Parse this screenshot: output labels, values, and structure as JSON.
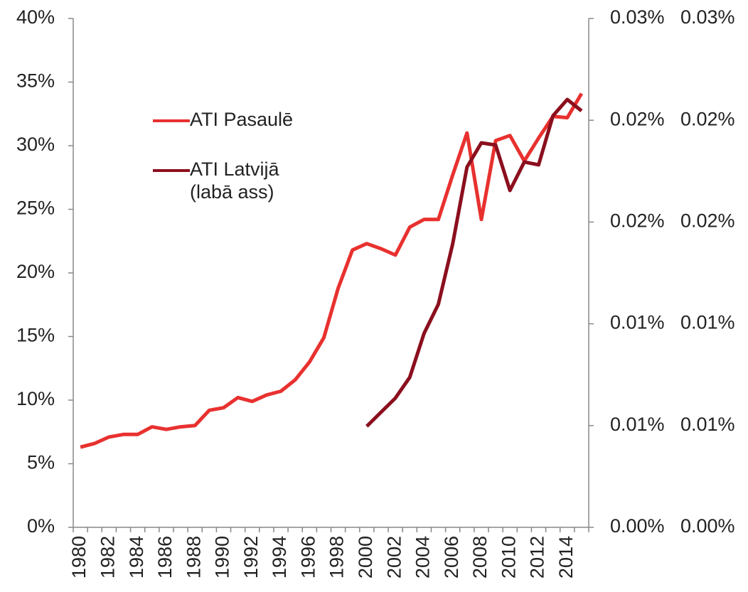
{
  "chart_data": {
    "type": "line",
    "categories": [
      "1980",
      null,
      "1982",
      null,
      "1984",
      null,
      "1986",
      null,
      "1988",
      null,
      "1990",
      null,
      "1992",
      null,
      "1994",
      null,
      "1996",
      null,
      "1998",
      null,
      "2000",
      null,
      "2002",
      null,
      "2004",
      null,
      "2006",
      null,
      "2008",
      null,
      "2010",
      null,
      "2012",
      null,
      "2014",
      null
    ],
    "series": [
      {
        "name": "ATI Pasaulē",
        "color": "#e8312f",
        "values": [
          6.3,
          6.6,
          7.1,
          7.3,
          7.3,
          7.9,
          7.7,
          7.9,
          8.0,
          9.2,
          9.4,
          10.2,
          9.9,
          10.4,
          10.7,
          11.6,
          13.0,
          14.9,
          18.8,
          21.8,
          22.3,
          21.9,
          21.4,
          23.6,
          24.2,
          24.2,
          27.7,
          31.0,
          24.2,
          30.4,
          30.8,
          28.8,
          30.6,
          32.3,
          32.2,
          34.1
        ]
      },
      {
        "name": "ATI Latvijā\n(labā ass)",
        "color": "#8b0f1e",
        "axis": "y2",
        "values": [
          null,
          null,
          null,
          null,
          null,
          null,
          null,
          null,
          null,
          null,
          null,
          null,
          null,
          null,
          null,
          null,
          null,
          null,
          null,
          null,
          0.00496,
          0.00566,
          0.00635,
          0.00737,
          0.00953,
          0.01096,
          0.01393,
          0.0177,
          0.01889,
          0.01878,
          0.01655,
          0.01795,
          0.01781,
          0.02022,
          0.02102,
          0.02046
        ]
      }
    ],
    "ylim": [
      0,
      40
    ],
    "yticks": [
      {
        "value": 0,
        "label": "0%"
      },
      {
        "value": 5,
        "label": "5%"
      },
      {
        "value": 10,
        "label": "10%"
      },
      {
        "value": 15,
        "label": "15%"
      },
      {
        "value": 20,
        "label": "20%"
      },
      {
        "value": 25,
        "label": "25%"
      },
      {
        "value": 30,
        "label": "30%"
      },
      {
        "value": 35,
        "label": "35%"
      },
      {
        "value": 40,
        "label": "40%"
      }
    ],
    "y2lim": [
      0,
      0.025
    ],
    "y2ticks": [
      {
        "value": 0,
        "label": "0.00%"
      },
      {
        "value": 0.005,
        "label": "0.01%"
      },
      {
        "value": 0.01,
        "label": "0.01%"
      },
      {
        "value": 0.015,
        "label": "0.02%"
      },
      {
        "value": 0.02,
        "label": "0.02%"
      },
      {
        "value": 0.025,
        "label": "0.03%"
      }
    ]
  }
}
